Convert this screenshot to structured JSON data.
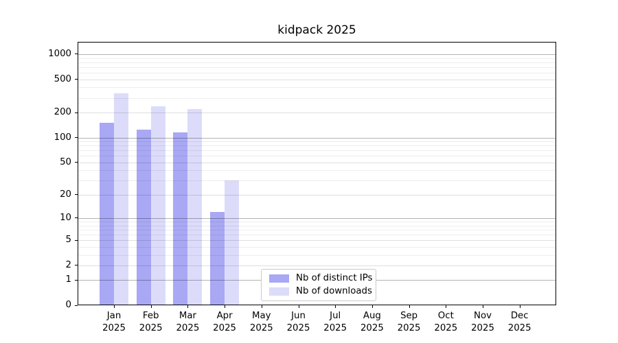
{
  "chart_data": {
    "type": "bar",
    "title": "kidpack 2025",
    "categories": [
      "Jan",
      "Feb",
      "Mar",
      "Apr",
      "May",
      "Jun",
      "Jul",
      "Aug",
      "Sep",
      "Oct",
      "Nov",
      "Dec"
    ],
    "year_label": "2025",
    "series": [
      {
        "name": "Nb of distinct IPs",
        "color": "#a8a8f4",
        "values": [
          150,
          124,
          115,
          12,
          null,
          null,
          null,
          null,
          null,
          null,
          null,
          null
        ]
      },
      {
        "name": "Nb of downloads",
        "color": "#dcdcfa",
        "values": [
          340,
          237,
          219,
          30,
          null,
          null,
          null,
          null,
          null,
          null,
          null,
          null
        ]
      }
    ],
    "yscale": "log(1+x)",
    "ylim": [
      0,
      1403
    ],
    "yticks": [
      0,
      1,
      2,
      5,
      10,
      20,
      50,
      100,
      200,
      500,
      1000
    ],
    "major_gridlines": [
      1,
      10,
      100,
      1000
    ],
    "labeled_gridlines": [
      2,
      5,
      20,
      50,
      200,
      500
    ],
    "minor_gridlines": [
      3,
      4,
      6,
      7,
      8,
      9,
      30,
      40,
      60,
      70,
      80,
      90,
      300,
      400,
      600,
      700,
      800,
      900
    ],
    "grid": "on, drawn above bars",
    "legend": {
      "position": "inside lower-center-left",
      "entries": [
        "Nb of distinct IPs",
        "Nb of downloads"
      ]
    }
  }
}
